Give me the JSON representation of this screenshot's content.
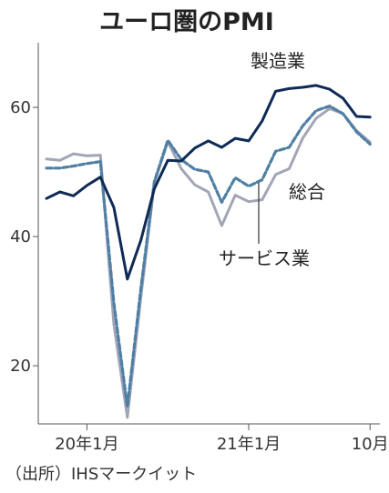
{
  "chart_data": {
    "type": "line",
    "title": "ユーロ圏のPMI",
    "source": "（出所）IHSマークイット",
    "x_ticks": [
      "20年1月",
      "21年1月",
      "10月"
    ],
    "y_ticks": [
      20,
      40,
      60
    ],
    "ylim": [
      11,
      70
    ],
    "x_range": [
      "2019-10",
      "2021-10"
    ],
    "series": [
      {
        "name": "製造業",
        "color": "#0e2a55",
        "style": "solid",
        "x": [
          "2019-10",
          "2019-11",
          "2019-12",
          "2020-01",
          "2020-02",
          "2020-03",
          "2020-04",
          "2020-05",
          "2020-06",
          "2020-07",
          "2020-08",
          "2020-09",
          "2020-10",
          "2020-11",
          "2020-12",
          "2021-01",
          "2021-02",
          "2021-03",
          "2021-04",
          "2021-05",
          "2021-06",
          "2021-07",
          "2021-08",
          "2021-09",
          "2021-10"
        ],
        "values": [
          45.9,
          46.9,
          46.3,
          47.9,
          49.2,
          44.5,
          33.4,
          39.4,
          47.4,
          51.8,
          51.7,
          53.7,
          54.8,
          53.8,
          55.2,
          54.8,
          57.9,
          62.5,
          62.9,
          63.1,
          63.4,
          62.8,
          61.4,
          58.6,
          58.5
        ]
      },
      {
        "name": "総合",
        "color": "#4f7fa3",
        "style": "dashed",
        "x": [
          "2019-10",
          "2019-11",
          "2019-12",
          "2020-01",
          "2020-02",
          "2020-03",
          "2020-04",
          "2020-05",
          "2020-06",
          "2020-07",
          "2020-08",
          "2020-09",
          "2020-10",
          "2020-11",
          "2020-12",
          "2021-01",
          "2021-02",
          "2021-03",
          "2021-04",
          "2021-05",
          "2021-06",
          "2021-07",
          "2021-08",
          "2021-09",
          "2021-10"
        ],
        "values": [
          50.6,
          50.6,
          50.9,
          51.3,
          51.6,
          29.7,
          13.6,
          31.9,
          48.5,
          54.9,
          51.9,
          50.4,
          50.0,
          45.3,
          49.1,
          47.8,
          48.8,
          53.2,
          53.8,
          57.1,
          59.5,
          60.2,
          59.0,
          56.2,
          54.3
        ]
      },
      {
        "name": "サービス業",
        "color": "#a2a5b8",
        "style": "solid",
        "x": [
          "2019-10",
          "2019-11",
          "2019-12",
          "2020-01",
          "2020-02",
          "2020-03",
          "2020-04",
          "2020-05",
          "2020-06",
          "2020-07",
          "2020-08",
          "2020-09",
          "2020-10",
          "2020-11",
          "2020-12",
          "2021-01",
          "2021-02",
          "2021-03",
          "2021-04",
          "2021-05",
          "2021-06",
          "2021-07",
          "2021-08",
          "2021-09",
          "2021-10"
        ],
        "values": [
          52.0,
          51.8,
          52.8,
          52.5,
          52.6,
          26.4,
          12.0,
          30.5,
          48.3,
          54.7,
          50.5,
          48.0,
          46.9,
          41.7,
          46.4,
          45.4,
          45.7,
          49.6,
          50.5,
          55.2,
          58.3,
          59.8,
          59.0,
          56.4,
          54.6
        ]
      }
    ],
    "grid": false,
    "legend": "direct labels on lines"
  }
}
